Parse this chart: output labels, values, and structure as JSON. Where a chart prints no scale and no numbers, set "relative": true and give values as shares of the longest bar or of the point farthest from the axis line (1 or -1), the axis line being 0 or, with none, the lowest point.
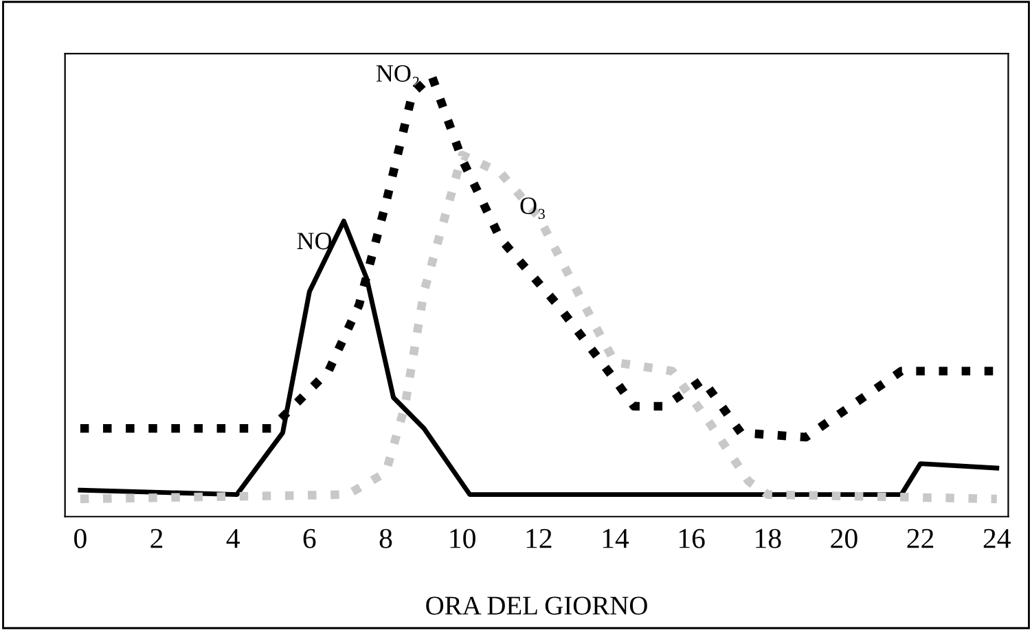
{
  "chart_data": {
    "type": "line",
    "xlabel": "ORA DEL GIORNO",
    "relative": true,
    "xlim": [
      -0.4,
      24.3
    ],
    "xticks": [
      0,
      2,
      4,
      6,
      8,
      10,
      12,
      14,
      16,
      18,
      20,
      22,
      24
    ],
    "grid": false,
    "legend": false,
    "marker": "none",
    "series": [
      {
        "name": "NO",
        "color": "#000000",
        "line_style": "solid",
        "x": [
          0,
          4.1,
          5.3,
          6.0,
          6.9,
          7.5,
          8.2,
          9,
          10.2,
          21.5,
          22,
          24
        ],
        "values": [
          0.06,
          0.05,
          0.19,
          0.51,
          0.67,
          0.54,
          0.27,
          0.2,
          0.05,
          0.05,
          0.12,
          0.11
        ]
      },
      {
        "name": "NO₂",
        "color": "#000000",
        "line_style": "dotted",
        "x": [
          0,
          5,
          6.5,
          7.3,
          8,
          8.7,
          9.2,
          10,
          11,
          12.5,
          14,
          14.5,
          15.3,
          16.3,
          17.3,
          19,
          21.5,
          24
        ],
        "values": [
          0.2,
          0.2,
          0.33,
          0.48,
          0.71,
          0.96,
          1.0,
          0.81,
          0.63,
          0.48,
          0.31,
          0.25,
          0.25,
          0.31,
          0.19,
          0.18,
          0.33,
          0.33
        ]
      },
      {
        "name": "O₃",
        "color": "#c8c8c8",
        "line_style": "dotted",
        "x": [
          0,
          7,
          8,
          8.5,
          9,
          10,
          11,
          12,
          13.5,
          14,
          15.5,
          16.5,
          17.5,
          18,
          24
        ],
        "values": [
          0.04,
          0.05,
          0.1,
          0.25,
          0.51,
          0.82,
          0.78,
          0.68,
          0.43,
          0.35,
          0.33,
          0.21,
          0.08,
          0.05,
          0.04
        ]
      }
    ]
  }
}
